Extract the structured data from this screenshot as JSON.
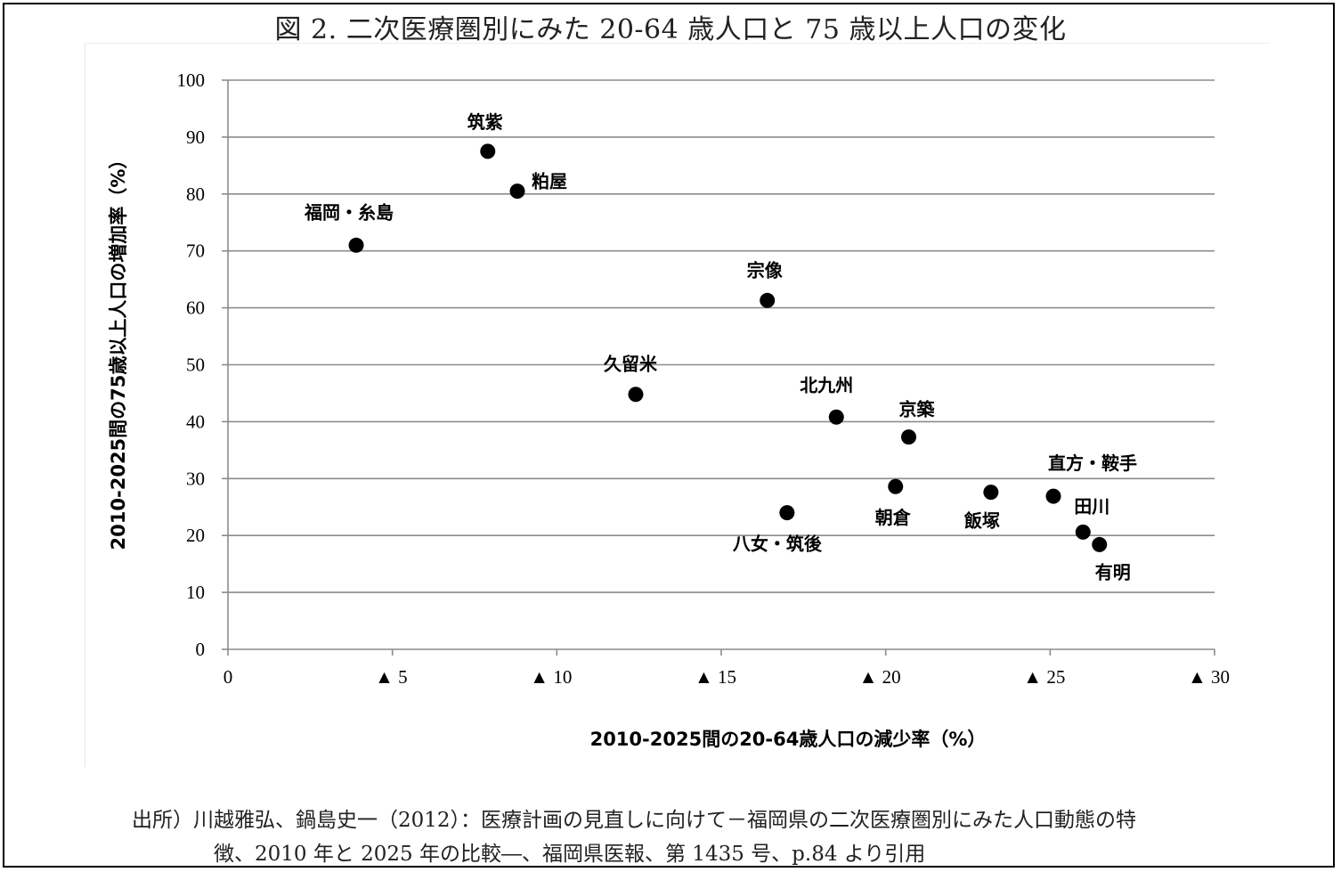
{
  "title": "図 2.  二次医療圏別にみた 20-64 歳人口と 75 歳以上人口の変化",
  "source": {
    "line1": "出所）川越雅弘、鍋島史一（2012）：医療計画の見直しに向けて－福岡県の二次医療圏別にみた人口動態の特",
    "line2": "徴、2010 年と 2025 年の比較―、福岡県医報、第 1435 号、p.84 より引用"
  },
  "chart_data": {
    "type": "scatter",
    "title": "図 2.  二次医療圏別にみた 20-64 歳人口と 75 歳以上人口の変化",
    "xlabel": "2010-2025間の20-64歳人口の減少率（%）",
    "ylabel": "2010-2025間の75歳以上人口の増加率（%）",
    "xlim": [
      0,
      30
    ],
    "ylim": [
      0,
      100
    ],
    "x_ticks": [
      "0",
      "▲ 5",
      "▲ 10",
      "▲ 15",
      "▲ 20",
      "▲ 25",
      "▲ 30"
    ],
    "y_ticks": [
      "0",
      "10",
      "20",
      "30",
      "40",
      "50",
      "60",
      "70",
      "80",
      "90",
      "100"
    ],
    "grid": "horizontal",
    "marker_color": "#000000",
    "points": [
      {
        "label": "福岡・糸島",
        "x": 3.9,
        "y": 71
      },
      {
        "label": "筑紫",
        "x": 7.9,
        "y": 87.5
      },
      {
        "label": "粕屋",
        "x": 8.8,
        "y": 80.5
      },
      {
        "label": "宗像",
        "x": 16.4,
        "y": 61.3
      },
      {
        "label": "久留米",
        "x": 12.4,
        "y": 44.8
      },
      {
        "label": "北九州",
        "x": 18.5,
        "y": 40.8
      },
      {
        "label": "京築",
        "x": 20.7,
        "y": 37.3
      },
      {
        "label": "八女・筑後",
        "x": 17.0,
        "y": 24.0
      },
      {
        "label": "朝倉",
        "x": 20.3,
        "y": 28.6
      },
      {
        "label": "飯塚",
        "x": 23.2,
        "y": 27.6
      },
      {
        "label": "直方・鞍手",
        "x": 25.1,
        "y": 26.9
      },
      {
        "label": "田川",
        "x": 26.0,
        "y": 20.6
      },
      {
        "label": "有明",
        "x": 26.5,
        "y": 18.4
      }
    ]
  }
}
